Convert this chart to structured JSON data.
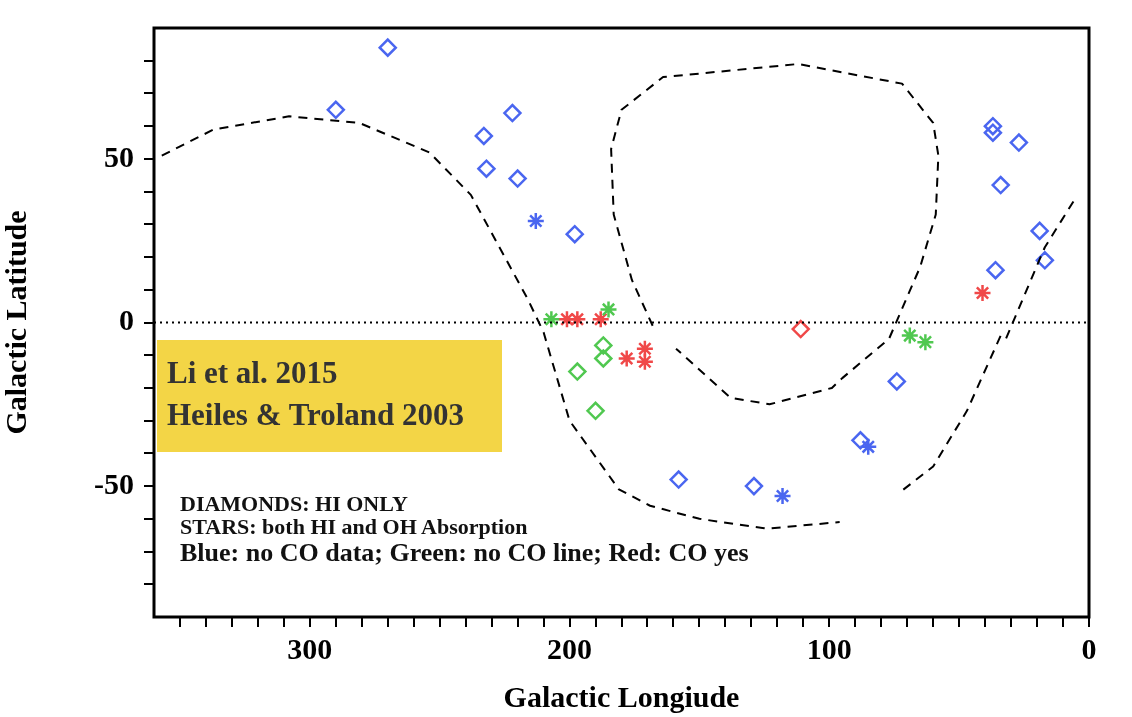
{
  "chart_data": {
    "type": "scatter",
    "xlabel": "Galactic Longiude",
    "ylabel": "Galactic Latitude",
    "xlim": [
      360,
      0
    ],
    "ylim": [
      -90,
      90
    ],
    "xticks": [
      {
        "value": 350,
        "label": null
      },
      {
        "value": 340,
        "label": null
      },
      {
        "value": 330,
        "label": null
      },
      {
        "value": 320,
        "label": null
      },
      {
        "value": 310,
        "label": null
      },
      300,
      {
        "value": 290,
        "label": null
      },
      {
        "value": 280,
        "label": null
      },
      {
        "value": 270,
        "label": null
      },
      {
        "value": 260,
        "label": null
      },
      {
        "value": 250,
        "label": null
      },
      {
        "value": 240,
        "label": null
      },
      {
        "value": 230,
        "label": null
      },
      {
        "value": 220,
        "label": null
      },
      {
        "value": 210,
        "label": null
      },
      200,
      {
        "value": 190,
        "label": null
      },
      {
        "value": 180,
        "label": null
      },
      {
        "value": 170,
        "label": null
      },
      {
        "value": 160,
        "label": null
      },
      {
        "value": 150,
        "label": null
      },
      {
        "value": 140,
        "label": null
      },
      {
        "value": 130,
        "label": null
      },
      {
        "value": 120,
        "label": null
      },
      {
        "value": 110,
        "label": null
      },
      100,
      {
        "value": 90,
        "label": null
      },
      {
        "value": 80,
        "label": null
      },
      {
        "value": 70,
        "label": null
      },
      {
        "value": 60,
        "label": null
      },
      {
        "value": 50,
        "label": null
      },
      {
        "value": 40,
        "label": null
      },
      {
        "value": 30,
        "label": null
      },
      {
        "value": 20,
        "label": null
      },
      {
        "value": 10,
        "label": null
      },
      0
    ],
    "yticks": [
      {
        "value": -80,
        "label": null
      },
      {
        "value": -70,
        "label": null
      },
      {
        "value": -60,
        "label": null
      },
      -50,
      {
        "value": -40,
        "label": null
      },
      {
        "value": -30,
        "label": null
      },
      {
        "value": -20,
        "label": null
      },
      {
        "value": -10,
        "label": null
      },
      0,
      {
        "value": 10,
        "label": null
      },
      {
        "value": 20,
        "label": null
      },
      {
        "value": 30,
        "label": null
      },
      {
        "value": 40,
        "label": null
      },
      50,
      {
        "value": 60,
        "label": null
      },
      {
        "value": 70,
        "label": null
      },
      {
        "value": 80,
        "label": null
      }
    ],
    "legend": false,
    "grid": false,
    "ref_lines": [
      {
        "axis": "y",
        "value": 0,
        "line_style": "dotted",
        "color": "#000000"
      }
    ],
    "series": [
      {
        "type": "line",
        "color": "#000000",
        "line_style": "dashed",
        "marker": "none",
        "x": [
          357,
          337,
          308,
          281,
          254,
          238,
          227,
          216,
          210,
          200,
          181,
          169,
          150,
          124,
          96
        ],
        "values": [
          51,
          59,
          63,
          61,
          52,
          39,
          23,
          7,
          -3,
          -30,
          -51,
          -56,
          -60,
          -63,
          -61
        ]
      },
      {
        "type": "line",
        "color": "#000000",
        "line_style": "dashed",
        "marker": "none",
        "x": [
          168,
          176,
          183,
          184,
          180,
          164,
          112,
          72,
          60,
          58,
          59,
          65,
          77,
          83,
          95,
          99,
          123,
          138,
          159
        ],
        "values": [
          -1,
          13,
          33,
          53,
          65,
          75,
          79,
          73,
          61,
          51,
          33,
          17,
          -5,
          -9,
          -17,
          -20,
          -25,
          -23,
          -8
        ]
      },
      {
        "type": "line",
        "color": "#000000",
        "line_style": "dashed",
        "marker": "none",
        "x": [
          6,
          17,
          32,
          34,
          47,
          60,
          73
        ],
        "values": [
          37,
          23,
          -5,
          -4,
          -27,
          -44,
          -52
        ]
      },
      {
        "color": "#4a66f0",
        "marker": "diamond",
        "x": [
          270,
          290,
          222,
          233,
          232,
          220,
          198,
          37,
          37,
          27,
          34,
          19,
          17,
          36,
          74,
          88,
          129,
          158
        ],
        "values": [
          84,
          65,
          64,
          57,
          47,
          44,
          27,
          60,
          58,
          55,
          42,
          28,
          19,
          16,
          -18,
          -36,
          -50,
          -48
        ]
      },
      {
        "color": "#4a66f0",
        "marker": "cross",
        "x": [
          213,
          85,
          118
        ],
        "values": [
          31,
          -38,
          -53
        ]
      },
      {
        "color": "#50c850",
        "marker": "diamond",
        "x": [
          197,
          187,
          187,
          190
        ],
        "values": [
          -15,
          -7,
          -11,
          -27
        ]
      },
      {
        "color": "#50c850",
        "marker": "cross",
        "x": [
          207,
          185,
          69,
          63
        ],
        "values": [
          1,
          4,
          -4,
          -6
        ]
      },
      {
        "color": "#f04848",
        "marker": "diamond",
        "x": [
          111
        ],
        "values": [
          -2
        ]
      },
      {
        "color": "#f04848",
        "marker": "cross",
        "x": [
          201,
          197,
          188,
          41,
          178,
          171,
          171
        ],
        "values": [
          1,
          1,
          1,
          9,
          -11,
          -8,
          -12
        ]
      }
    ],
    "annotations": [
      "Li et al. 2015",
      "Heiles & Troland 2003",
      "DIAMONDS: HI ONLY",
      "STARS: both HI and OH Absorption",
      "Blue: no CO data; Green: no CO line; Red: CO yes"
    ]
  }
}
